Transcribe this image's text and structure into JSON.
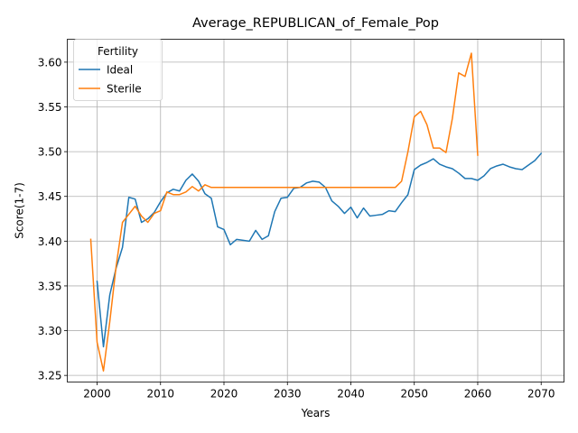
{
  "chart_data": {
    "type": "line",
    "title": "Average_REPUBLICAN_of_Female_Pop",
    "xlabel": "Years",
    "ylabel": "Score(1-7)",
    "xlim": [
      1995.3,
      2073.6
    ],
    "ylim": [
      3.2426,
      3.6256
    ],
    "xticks": [
      2000,
      2010,
      2020,
      2030,
      2040,
      2050,
      2060,
      2070
    ],
    "yticks": [
      3.25,
      3.3,
      3.35,
      3.4,
      3.45,
      3.5,
      3.55,
      3.6
    ],
    "ytick_labels": [
      "3.25",
      "3.30",
      "3.35",
      "3.40",
      "3.45",
      "3.50",
      "3.55",
      "3.60"
    ],
    "grid": true,
    "legend": {
      "title": "Fertility",
      "placement": "top-left"
    },
    "series": [
      {
        "name": "Ideal",
        "color": "#1f77b4",
        "x": [
          2000,
          2001,
          2002,
          2003,
          2004,
          2005,
          2006,
          2007,
          2008,
          2009,
          2010,
          2011,
          2012,
          2013,
          2014,
          2015,
          2016,
          2017,
          2018,
          2019,
          2020,
          2021,
          2022,
          2023,
          2024,
          2025,
          2026,
          2027,
          2028,
          2029,
          2030,
          2031,
          2032,
          2033,
          2034,
          2035,
          2036,
          2037,
          2038,
          2039,
          2040,
          2041,
          2042,
          2043,
          2044,
          2045,
          2046,
          2047,
          2048,
          2049,
          2050,
          2051,
          2052,
          2053,
          2054,
          2055,
          2056,
          2057,
          2058,
          2059,
          2060,
          2061,
          2062,
          2063,
          2064,
          2065,
          2066,
          2067,
          2068,
          2069,
          2070
        ],
        "y": [
          3.355,
          3.282,
          3.34,
          3.37,
          3.393,
          3.449,
          3.447,
          3.421,
          3.425,
          3.432,
          3.444,
          3.454,
          3.458,
          3.456,
          3.468,
          3.475,
          3.467,
          3.453,
          3.448,
          3.416,
          3.413,
          3.396,
          3.402,
          3.401,
          3.4,
          3.412,
          3.402,
          3.406,
          3.433,
          3.448,
          3.449,
          3.459,
          3.46,
          3.465,
          3.467,
          3.466,
          3.46,
          3.445,
          3.439,
          3.431,
          3.438,
          3.426,
          3.437,
          3.428,
          3.429,
          3.43,
          3.434,
          3.433,
          3.443,
          3.452,
          3.48,
          3.485,
          3.488,
          3.492,
          3.486,
          3.483,
          3.481,
          3.476,
          3.47,
          3.47,
          3.468,
          3.473,
          3.481,
          3.484,
          3.486,
          3.483,
          3.481,
          3.48,
          3.485,
          3.49,
          3.498
        ]
      },
      {
        "name": "Sterile",
        "color": "#ff7f0e",
        "x": [
          1999,
          2000,
          2001,
          2002,
          2003,
          2004,
          2005,
          2006,
          2007,
          2008,
          2009,
          2010,
          2011,
          2012,
          2013,
          2014,
          2015,
          2016,
          2017,
          2018,
          2019,
          2020,
          2021,
          2022,
          2023,
          2024,
          2025,
          2026,
          2027,
          2028,
          2029,
          2030,
          2031,
          2032,
          2033,
          2034,
          2035,
          2036,
          2037,
          2038,
          2039,
          2040,
          2041,
          2042,
          2043,
          2044,
          2045,
          2046,
          2047,
          2048,
          2049,
          2050,
          2051,
          2052,
          2053,
          2054,
          2055,
          2056,
          2057,
          2058,
          2059,
          2060
        ],
        "y": [
          3.402,
          3.287,
          3.255,
          3.31,
          3.372,
          3.421,
          3.43,
          3.439,
          3.428,
          3.421,
          3.431,
          3.434,
          3.455,
          3.452,
          3.452,
          3.455,
          3.461,
          3.456,
          3.463,
          3.46,
          3.46,
          3.46,
          3.46,
          3.46,
          3.46,
          3.46,
          3.46,
          3.46,
          3.46,
          3.46,
          3.46,
          3.46,
          3.46,
          3.46,
          3.46,
          3.46,
          3.46,
          3.46,
          3.46,
          3.46,
          3.46,
          3.46,
          3.46,
          3.46,
          3.46,
          3.46,
          3.46,
          3.46,
          3.46,
          3.467,
          3.5,
          3.539,
          3.545,
          3.53,
          3.504,
          3.504,
          3.499,
          3.537,
          3.588,
          3.584,
          3.61,
          3.496
        ]
      }
    ]
  }
}
